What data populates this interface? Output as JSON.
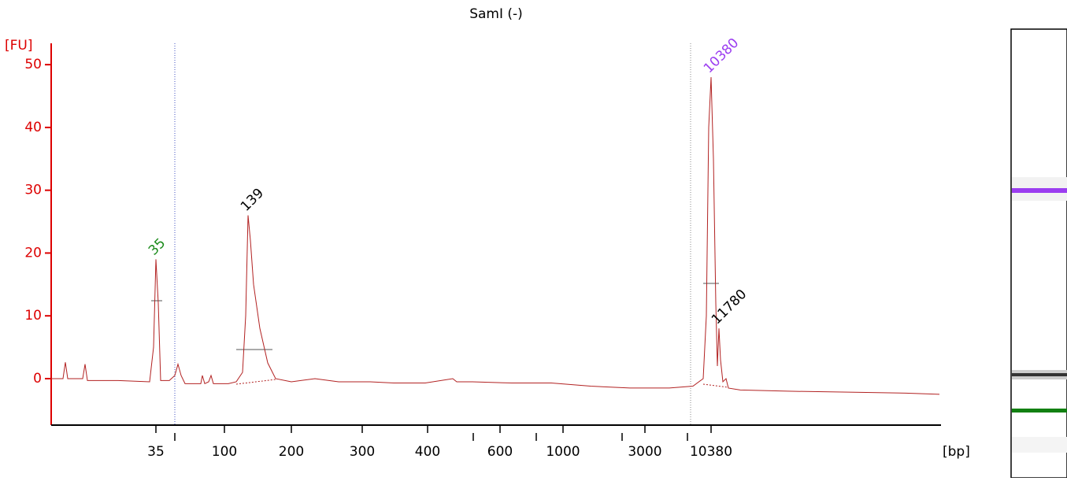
{
  "chart_data": {
    "type": "line",
    "title": "SamI (-)",
    "y_unit": "[FU]",
    "x_unit": "[bp]",
    "ylim": [
      -7.4,
      53.4
    ],
    "yticks": [
      0,
      10,
      20,
      30,
      40,
      50
    ],
    "xlim": [
      0,
      1130
    ],
    "xticks": [
      {
        "value": 133,
        "label": "35"
      },
      {
        "value": 220,
        "label": "100"
      },
      {
        "value": 305,
        "label": "200"
      },
      {
        "value": 395,
        "label": "300"
      },
      {
        "value": 478,
        "label": "400"
      },
      {
        "value": 570,
        "label": "600"
      },
      {
        "value": 650,
        "label": "1000"
      },
      {
        "value": 754,
        "label": "3000"
      },
      {
        "value": 838,
        "label": "10380"
      }
    ],
    "x_minor_ticks": [
      157,
      536,
      616,
      725,
      808
    ],
    "series": [
      {
        "color": "#b22222",
        "x": [
          0,
          15,
          18,
          21,
          35,
          40,
          43,
          46,
          85,
          125,
          130,
          133,
          136,
          139,
          150,
          157,
          161,
          165,
          170,
          190,
          192,
          195,
          200,
          203,
          206,
          225,
          235,
          243,
          247,
          250,
          253,
          257,
          265,
          275,
          285,
          305,
          335,
          365,
          405,
          435,
          475,
          510,
          515,
          535,
          585,
          635,
          685,
          735,
          785,
          815,
          828,
          832,
          835,
          838,
          841,
          844,
          846,
          848,
          850,
          853,
          857,
          860,
          875,
          935,
          1035,
          1085,
          1128
        ],
        "values": [
          0,
          0,
          2.6,
          0,
          0,
          0,
          2.3,
          -0.3,
          -0.3,
          -0.5,
          5,
          19,
          12,
          -0.3,
          -0.3,
          0.5,
          2.3,
          0.5,
          -0.8,
          -0.8,
          0.5,
          -0.8,
          -0.5,
          0.5,
          -0.8,
          -0.8,
          -0.5,
          1,
          10,
          26,
          22,
          15,
          8,
          2.5,
          0,
          -0.5,
          0,
          -0.5,
          -0.5,
          -0.7,
          -0.7,
          0,
          -0.5,
          -0.5,
          -0.7,
          -0.7,
          -1.2,
          -1.5,
          -1.5,
          -1.2,
          0,
          10,
          40,
          48,
          35,
          12,
          2,
          8,
          3,
          -0.5,
          0,
          -1.5,
          -1.8,
          -2,
          -2.2,
          -2.3,
          -2.5
        ]
      }
    ],
    "peak_labels": [
      {
        "text": "35",
        "x": 133,
        "y": 19,
        "color": "#1a8a1a"
      },
      {
        "text": "139",
        "x": 250,
        "y": 26,
        "color": "#000000"
      },
      {
        "text": "10380",
        "x": 838,
        "y": 48,
        "color": "#9b3df0"
      },
      {
        "text": "11780",
        "x": 848,
        "y": 8,
        "color": "#000000"
      }
    ]
  }
}
